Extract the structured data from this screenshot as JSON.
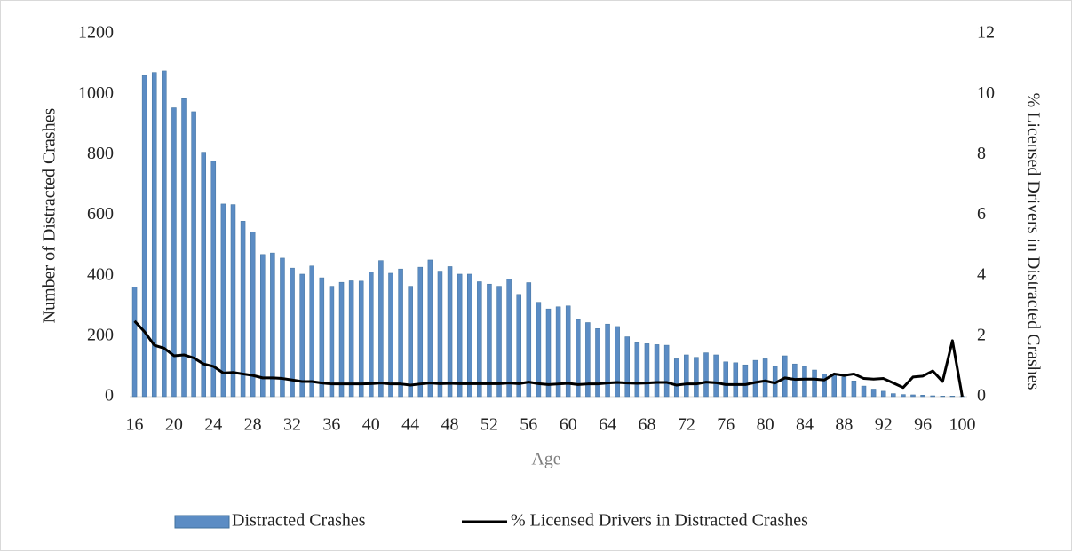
{
  "chart_data": {
    "type": "bar",
    "x_label": "Age",
    "y_label": "Number of Distracted Crashes",
    "y2_label": "% Licensed Drivers in Distracted Crashes",
    "categories": [
      16,
      null,
      null,
      null,
      20,
      null,
      null,
      null,
      24,
      null,
      null,
      null,
      28,
      null,
      null,
      null,
      32,
      null,
      null,
      null,
      36,
      null,
      null,
      null,
      40,
      null,
      null,
      null,
      44,
      null,
      null,
      null,
      48,
      null,
      null,
      null,
      52,
      null,
      null,
      null,
      56,
      null,
      null,
      null,
      60,
      null,
      null,
      null,
      64,
      null,
      null,
      null,
      68,
      null,
      null,
      null,
      72,
      null,
      null,
      null,
      76,
      null,
      null,
      null,
      80,
      null,
      null,
      null,
      84,
      null,
      null,
      null,
      88,
      null,
      null,
      null,
      92,
      null,
      null,
      null,
      96,
      null,
      null,
      null,
      100
    ],
    "series": [
      {
        "name": "Distracted Crashes",
        "type": "bar",
        "color": "#5b8cc4",
        "values": [
          362,
          1062,
          1072,
          1077,
          955,
          985,
          942,
          808,
          778,
          637,
          635,
          580,
          545,
          470,
          475,
          458,
          425,
          405,
          432,
          393,
          365,
          378,
          383,
          382,
          412,
          450,
          408,
          422,
          365,
          428,
          452,
          415,
          430,
          405,
          405,
          380,
          372,
          365,
          388,
          338,
          377,
          312,
          290,
          297,
          300,
          255,
          245,
          225,
          240,
          232,
          198,
          178,
          175,
          172,
          170,
          125,
          138,
          130,
          145,
          138,
          115,
          112,
          105,
          120,
          125,
          100,
          135,
          108,
          100,
          88,
          75,
          72,
          65,
          52,
          35,
          25,
          18,
          10,
          7,
          6,
          5,
          3,
          2,
          2,
          1
        ]
      },
      {
        "name": "% Licensed Drivers in Distracted Crashes",
        "type": "line",
        "axis": "y2",
        "color": "#000000",
        "values": [
          2.5,
          2.15,
          1.7,
          1.6,
          1.35,
          1.38,
          1.28,
          1.08,
          1.0,
          0.78,
          0.8,
          0.75,
          0.7,
          0.62,
          0.62,
          0.6,
          0.55,
          0.5,
          0.5,
          0.45,
          0.42,
          0.42,
          0.42,
          0.42,
          0.43,
          0.45,
          0.42,
          0.42,
          0.38,
          0.42,
          0.45,
          0.43,
          0.44,
          0.43,
          0.43,
          0.43,
          0.43,
          0.43,
          0.45,
          0.43,
          0.48,
          0.43,
          0.4,
          0.42,
          0.44,
          0.4,
          0.42,
          0.42,
          0.45,
          0.47,
          0.45,
          0.44,
          0.45,
          0.47,
          0.47,
          0.38,
          0.42,
          0.42,
          0.48,
          0.46,
          0.4,
          0.4,
          0.4,
          0.47,
          0.52,
          0.45,
          0.62,
          0.57,
          0.58,
          0.58,
          0.55,
          0.75,
          0.7,
          0.75,
          0.6,
          0.58,
          0.6,
          0.45,
          0.3,
          0.65,
          0.68,
          0.85,
          0.5,
          1.85,
          0
        ]
      }
    ],
    "ylim": [
      0,
      1200
    ],
    "yticks": [
      0,
      200,
      400,
      600,
      800,
      1000,
      1200
    ],
    "y2lim": [
      0,
      12
    ],
    "y2ticks": [
      0,
      2,
      4,
      6,
      8,
      10,
      12
    ],
    "grid": false,
    "legend": "bottom"
  }
}
